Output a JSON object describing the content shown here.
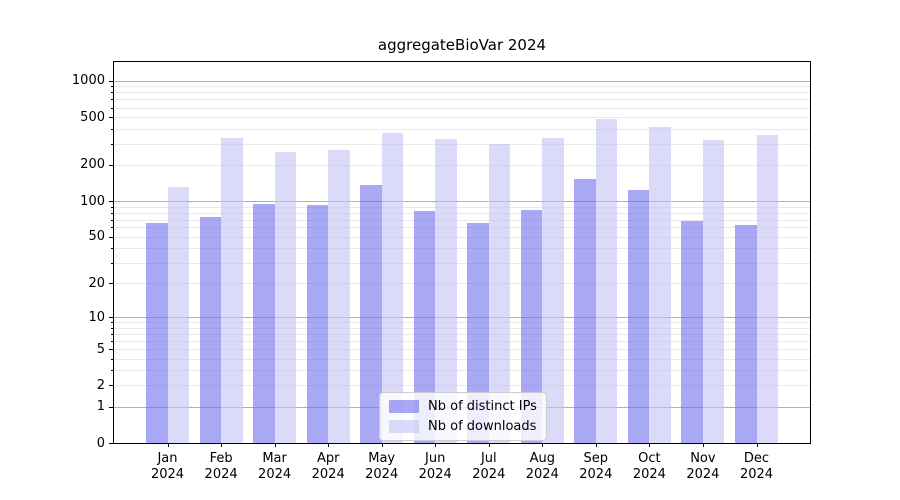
{
  "title": "aggregateBioVar 2024",
  "chart_data": {
    "type": "bar",
    "title": "aggregateBioVar 2024",
    "categories": [
      "Jan 2024",
      "Feb 2024",
      "Mar 2024",
      "Apr 2024",
      "May 2024",
      "Jun 2024",
      "Jul 2024",
      "Aug 2024",
      "Sep 2024",
      "Oct 2024",
      "Nov 2024",
      "Dec 2024"
    ],
    "month_labels": [
      "Jan",
      "Feb",
      "Mar",
      "Apr",
      "May",
      "Jun",
      "Jul",
      "Aug",
      "Sep",
      "Oct",
      "Nov",
      "Dec"
    ],
    "year_label": "2024",
    "series": [
      {
        "name": "Nb of distinct IPs",
        "color": "rgba(110,110,238,0.6)",
        "values": [
          65,
          73,
          95,
          92,
          135,
          82,
          66,
          84,
          152,
          123,
          68,
          63
        ]
      },
      {
        "name": "Nb of downloads",
        "color": "rgba(195,195,245,0.6)",
        "values": [
          131,
          334,
          256,
          268,
          368,
          330,
          300,
          335,
          480,
          415,
          320,
          356
        ]
      }
    ],
    "xlabel": "",
    "ylabel": "",
    "y_scale": "log1p",
    "y_ticks": [
      0,
      1,
      2,
      5,
      10,
      20,
      50,
      100,
      200,
      500,
      1000
    ],
    "y_major_gridlines": [
      1,
      10,
      100,
      1000
    ],
    "y_minor_gridlines": [
      2,
      3,
      4,
      5,
      6,
      7,
      8,
      9,
      20,
      30,
      40,
      50,
      60,
      70,
      80,
      90,
      200,
      300,
      400,
      500,
      600,
      700,
      800,
      900
    ],
    "ylim": [
      0,
      1430
    ],
    "grid": true,
    "legend_position": "lower center"
  },
  "colors": {
    "background": "#ffffff",
    "bar_distinct_ips_rendered": "#a8a8f2",
    "bar_downloads_rendered": "#dcdcf8",
    "major_grid": "#b0b0b0",
    "minor_grid": "#e9e9e9",
    "axis_spine": "#000000",
    "legend_border": "#cccccc",
    "text": "#000000"
  }
}
